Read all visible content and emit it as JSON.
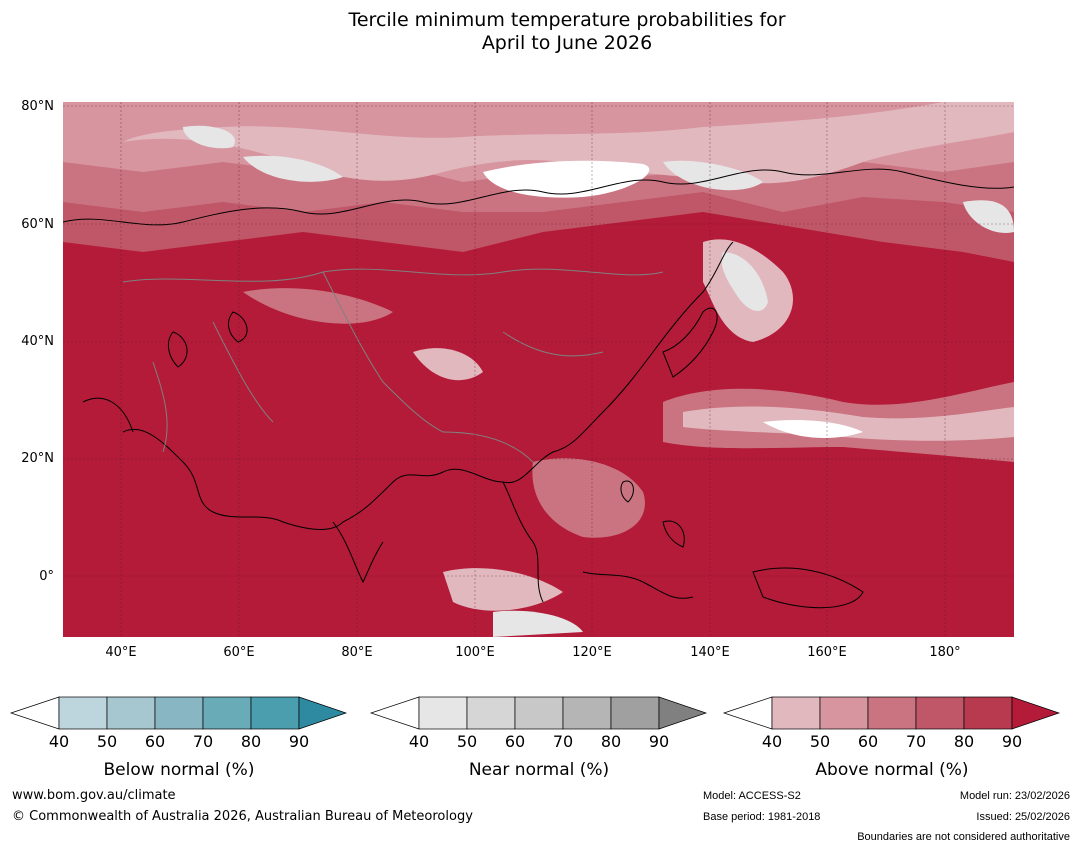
{
  "title_line1": "Tercile minimum temperature probabilities for",
  "title_line2": "April to June 2026",
  "lat_labels": [
    "80°N",
    "60°N",
    "40°N",
    "20°N",
    "0°"
  ],
  "lon_labels": [
    "40°E",
    "60°E",
    "80°E",
    "100°E",
    "120°E",
    "140°E",
    "160°E",
    "180°"
  ],
  "legends": {
    "below": {
      "title": "Below normal (%)",
      "ticks": [
        "40",
        "50",
        "60",
        "70",
        "80",
        "90"
      ],
      "colors": [
        "#ffffff",
        "#bdd5dc",
        "#a6c7cf",
        "#88b7c3",
        "#6aabb8",
        "#4a9eae",
        "#2e8aa0"
      ]
    },
    "near": {
      "title": "Near normal (%)",
      "ticks": [
        "40",
        "50",
        "60",
        "70",
        "80",
        "90"
      ],
      "colors": [
        "#ffffff",
        "#e6e6e6",
        "#d6d6d6",
        "#c8c8c8",
        "#b5b5b5",
        "#a0a0a0",
        "#808080"
      ]
    },
    "above": {
      "title": "Above normal (%)",
      "ticks": [
        "40",
        "50",
        "60",
        "70",
        "80",
        "90"
      ],
      "colors": [
        "#ffffff",
        "#e2b8bf",
        "#d7959f",
        "#ca7481",
        "#c05768",
        "#b73a4f",
        "#b31b38"
      ]
    }
  },
  "footer": {
    "website": "www.bom.gov.au/climate",
    "copyright": "© Commonwealth of Australia 2026, Australian Bureau of Meteorology",
    "model": "Model: ACCESS-S2",
    "base_period": "Base period: 1981-2018",
    "model_run": "Model run: 23/02/2026",
    "issued": "Issued: 25/02/2026",
    "disclaimer": "Boundaries are not considered authoritative"
  }
}
